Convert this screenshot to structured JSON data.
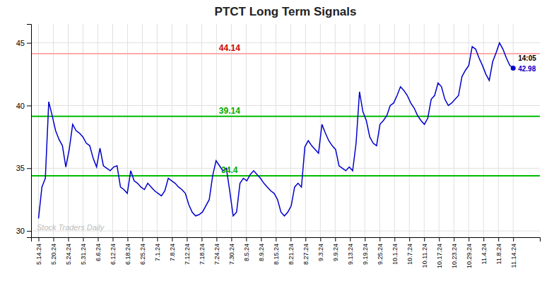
{
  "chart_data": {
    "type": "line",
    "title": "PTCT Long Term Signals",
    "color": "#0000cc",
    "grid": true,
    "x": [
      0,
      0.2302,
      0.4604,
      0.6906,
      0.9209,
      1.1511,
      1.3813,
      1.6115,
      1.8417,
      2.0719,
      2.3022,
      2.5324,
      2.7626,
      2.9928,
      3.223,
      3.4532,
      3.6835,
      3.9137,
      4.1439,
      4.3741,
      4.6043,
      4.8345,
      5.0647,
      5.295,
      5.5252,
      5.7554,
      5.9856,
      6.2158,
      6.446,
      6.6763,
      6.9065,
      7.1367,
      7.3669,
      7.5971,
      7.8273,
      8.0576,
      8.2878,
      8.518,
      8.7482,
      8.9784,
      9.2086,
      9.4388,
      9.6691,
      9.8993,
      10.1295,
      10.3597,
      10.5899,
      10.8201,
      11.0504,
      11.2806,
      11.5108,
      11.741,
      11.9712,
      12.2014,
      12.4317,
      12.6619,
      12.8921,
      13.1223,
      13.3525,
      13.5827,
      13.8129,
      14.0432,
      14.2734,
      14.5036,
      14.7338,
      14.964,
      15.1942,
      15.4245,
      15.6547,
      15.8849,
      16.1151,
      16.3453,
      16.5755,
      16.8058,
      17.036,
      17.2662,
      17.4964,
      17.7266,
      17.9568,
      18.1871,
      18.4173,
      18.6475,
      18.8777,
      19.1079,
      19.3381,
      19.5683,
      19.7986,
      20.0288,
      20.259,
      20.4892,
      20.7194,
      20.9496,
      21.1799,
      21.4101,
      21.6403,
      21.8705,
      22.1007,
      22.3309,
      22.5612,
      22.7914,
      23.0216,
      23.2518,
      23.482,
      23.7122,
      23.9424,
      24.1727,
      24.4029,
      24.6331,
      24.8633,
      25.0935,
      25.3237,
      25.554,
      25.7842,
      26.0144,
      26.2446,
      26.4748,
      26.705,
      26.9353,
      27.1655,
      27.3957,
      27.6259,
      27.8561,
      28.0863,
      28.3165,
      28.5468,
      28.777,
      29.0072,
      29.2374,
      29.4676,
      29.6978,
      29.9281,
      30.1583,
      30.3885,
      30.6187,
      30.8489,
      31.0791,
      31.3094,
      31.5396,
      31.7698,
      32
    ],
    "values": [
      31.0,
      33.5,
      34.2,
      40.3,
      39.2,
      38.0,
      37.3,
      36.8,
      35.1,
      36.5,
      38.5,
      38.0,
      37.8,
      37.5,
      37.0,
      36.8,
      35.8,
      35.1,
      36.6,
      35.2,
      35.0,
      34.8,
      35.1,
      35.2,
      33.5,
      33.3,
      33.0,
      34.8,
      34.0,
      33.8,
      33.5,
      33.3,
      33.8,
      33.5,
      33.2,
      33.0,
      32.8,
      33.2,
      34.2,
      34.0,
      33.8,
      33.5,
      33.3,
      33.0,
      32.1,
      31.5,
      31.2,
      31.3,
      31.5,
      32.0,
      32.5,
      34.4,
      35.6,
      35.2,
      34.8,
      35.0,
      33.2,
      31.2,
      31.5,
      33.8,
      34.2,
      34.0,
      34.5,
      34.8,
      34.5,
      34.2,
      33.8,
      33.5,
      33.2,
      33.0,
      32.5,
      31.5,
      31.2,
      31.5,
      32.0,
      33.5,
      33.8,
      33.5,
      36.7,
      37.2,
      36.8,
      36.5,
      36.2,
      38.5,
      37.8,
      37.2,
      36.8,
      36.5,
      35.2,
      35.0,
      34.8,
      35.1,
      34.8,
      37.0,
      41.1,
      39.5,
      38.8,
      37.5,
      37.0,
      36.8,
      38.5,
      38.8,
      39.2,
      40.0,
      40.2,
      40.8,
      41.5,
      41.2,
      40.8,
      40.2,
      39.8,
      39.2,
      38.8,
      38.5,
      39.0,
      40.5,
      40.8,
      41.8,
      41.5,
      40.5,
      40.0,
      40.2,
      40.5,
      40.8,
      42.3,
      42.8,
      43.2,
      44.7,
      44.5,
      43.8,
      43.2,
      42.5,
      42.0,
      43.5,
      44.2,
      45.0,
      44.5,
      43.8,
      43.2,
      42.98
    ],
    "xlim": [
      -0.5,
      33.8
    ],
    "xticks": [
      {
        "value": 0,
        "label": "5.14.24"
      },
      {
        "value": 1,
        "label": "5.20.24"
      },
      {
        "value": 2,
        "label": "5.24.24"
      },
      {
        "value": 3,
        "label": "5.31.24"
      },
      {
        "value": 4,
        "label": "6.6.24"
      },
      {
        "value": 5,
        "label": "6.12.24"
      },
      {
        "value": 6,
        "label": "6.18.24"
      },
      {
        "value": 7,
        "label": "6.25.24"
      },
      {
        "value": 8,
        "label": "7.1.24"
      },
      {
        "value": 9,
        "label": "7.8.24"
      },
      {
        "value": 10,
        "label": "7.12.24"
      },
      {
        "value": 11,
        "label": "7.18.24"
      },
      {
        "value": 12,
        "label": "7.24.24"
      },
      {
        "value": 13,
        "label": "7.30.24"
      },
      {
        "value": 14,
        "label": "8.5.24"
      },
      {
        "value": 15,
        "label": "8.9.24"
      },
      {
        "value": 16,
        "label": "8.15.24"
      },
      {
        "value": 17,
        "label": "8.21.24"
      },
      {
        "value": 18,
        "label": "8.27.24"
      },
      {
        "value": 19,
        "label": "9.3.24"
      },
      {
        "value": 20,
        "label": "9.9.24"
      },
      {
        "value": 21,
        "label": "9.13.24"
      },
      {
        "value": 22,
        "label": "9.19.24"
      },
      {
        "value": 23,
        "label": "9.25.24"
      },
      {
        "value": 24,
        "label": "10.1.24"
      },
      {
        "value": 25,
        "label": "10.7.24"
      },
      {
        "value": 26,
        "label": "10.11.24"
      },
      {
        "value": 27,
        "label": "10.17.24"
      },
      {
        "value": 28,
        "label": "10.23.24"
      },
      {
        "value": 29,
        "label": "10.29.24"
      },
      {
        "value": 30,
        "label": "11.4.24"
      },
      {
        "value": 31,
        "label": "11.8.24"
      },
      {
        "value": 32,
        "label": "11.14.24"
      }
    ],
    "ylim": [
      29.5,
      46.5
    ],
    "yticks": [
      30,
      35,
      40,
      45
    ],
    "reference_lines": [
      {
        "value": 44.14,
        "color": "#ffaaaa",
        "label_color": "#cc0000"
      },
      {
        "value": 39.14,
        "color": "#00bb00",
        "label_color": "#00aa00"
      },
      {
        "value": 34.4,
        "color": "#00bb00",
        "label_color": "#00aa00"
      }
    ],
    "last_time": "14:05",
    "watermark": "Stock Traders Daily"
  }
}
